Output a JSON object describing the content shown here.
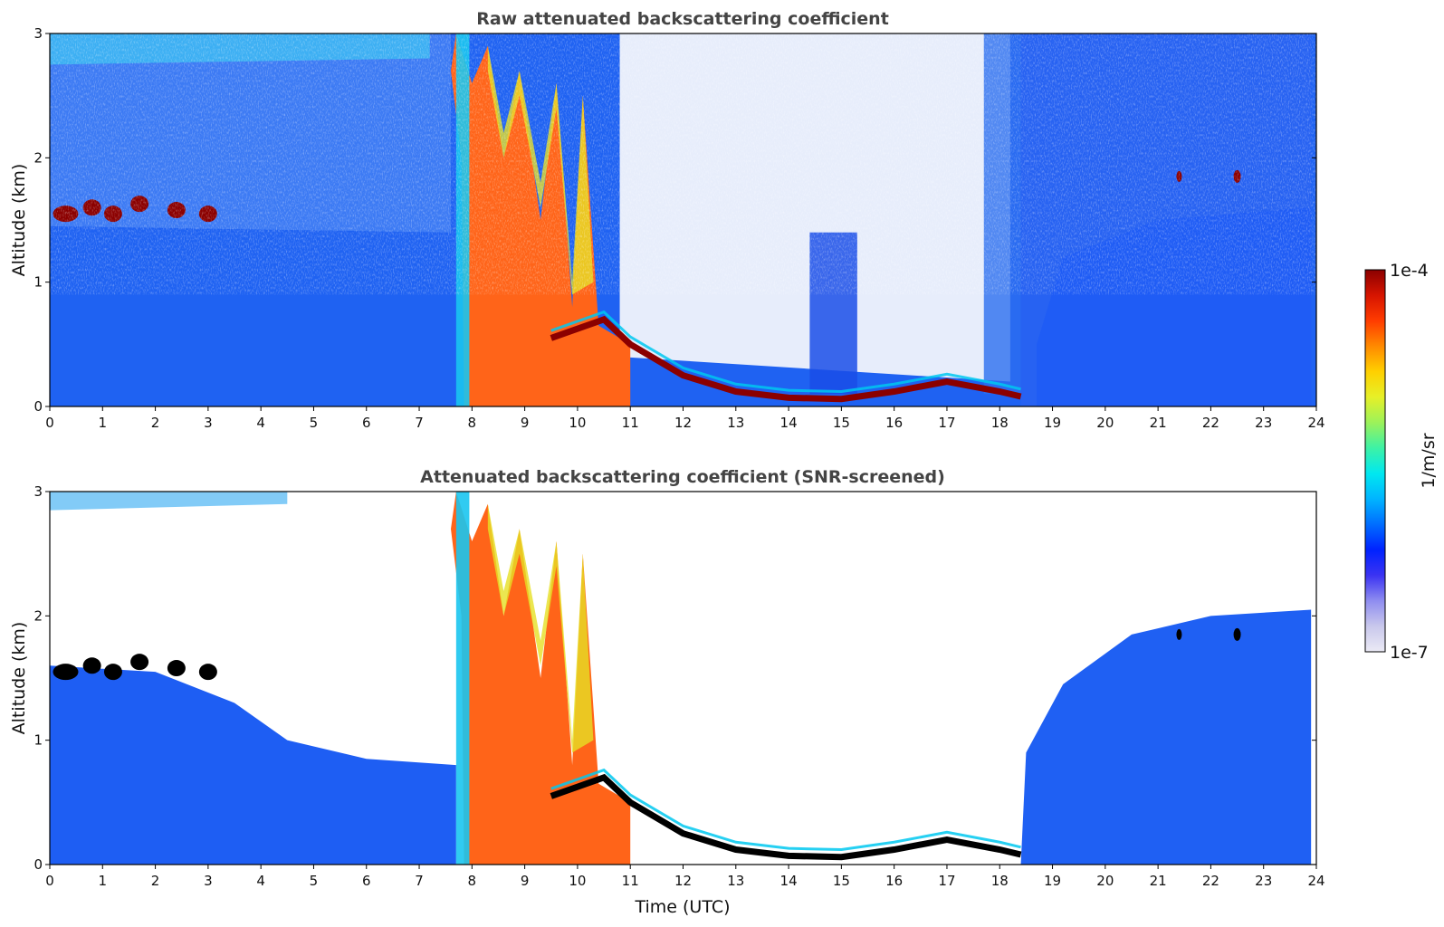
{
  "colors": {
    "colormap": [
      "#ebeaf5",
      "#c9c8ec",
      "#8f8df0",
      "#3b33f2",
      "#0022ff",
      "#006dff",
      "#00b4ff",
      "#00e8f0",
      "#3df2a6",
      "#9cf25a",
      "#e6f028",
      "#ffd000",
      "#ff8a00",
      "#ff3c00",
      "#d61400",
      "#8b0000"
    ],
    "snr_black": "#000000",
    "cloud_mid": "#ff6a1a"
  },
  "colorbar": {
    "label": "1/m/sr",
    "max_label": "1e-4",
    "min_label": "1e-7",
    "scale": "log"
  },
  "chart_data": [
    {
      "type": "heatmap",
      "title": "Raw attenuated backscattering coefficient",
      "xlabel": "",
      "ylabel": "Altitude (km)",
      "xlim": [
        0,
        24
      ],
      "ylim": [
        0,
        3
      ],
      "xticks": [
        0,
        1,
        2,
        3,
        4,
        5,
        6,
        7,
        8,
        9,
        10,
        11,
        12,
        13,
        14,
        15,
        16,
        17,
        18,
        19,
        20,
        21,
        22,
        23,
        24
      ],
      "yticks": [
        0,
        1,
        2,
        3
      ],
      "features": [
        {
          "name": "boundary layer",
          "x": [
            0,
            7.8
          ],
          "y": [
            0,
            1.45
          ]
        },
        {
          "name": "residual layer cloud",
          "x": [
            0.2,
            3.1
          ],
          "y": [
            1.5,
            1.75
          ]
        },
        {
          "name": "thick cloud",
          "x": [
            7.8,
            11.0
          ],
          "y": [
            0,
            3.0
          ]
        },
        {
          "name": "cloud base",
          "x": [
            9.5,
            18.4
          ],
          "y": [
            0.7,
            0.05
          ]
        },
        {
          "name": "boundary layer",
          "x": [
            18.6,
            23.9
          ],
          "y": [
            0,
            1.6
          ]
        }
      ]
    },
    {
      "type": "heatmap",
      "title": "Attenuated backscattering coefficient (SNR-screened)",
      "xlabel": "Time (UTC)",
      "ylabel": "Altitude (km)",
      "xlim": [
        0,
        24
      ],
      "ylim": [
        0,
        3
      ],
      "xticks": [
        0,
        1,
        2,
        3,
        4,
        5,
        6,
        7,
        8,
        9,
        10,
        11,
        12,
        13,
        14,
        15,
        16,
        17,
        18,
        19,
        20,
        21,
        22,
        23,
        24
      ],
      "yticks": [
        0,
        1,
        2,
        3
      ],
      "features": [
        {
          "name": "boundary layer",
          "x": [
            0,
            7.7
          ],
          "y": [
            0,
            1.6
          ]
        },
        {
          "name": "residual layer cloud",
          "x": [
            0.2,
            3.1
          ],
          "y": [
            1.5,
            1.75
          ]
        },
        {
          "name": "thick cloud",
          "x": [
            7.8,
            11.0
          ],
          "y": [
            0,
            3.0
          ]
        },
        {
          "name": "cloud base",
          "x": [
            9.5,
            18.4
          ],
          "y": [
            0.7,
            0.05
          ]
        },
        {
          "name": "boundary layer",
          "x": [
            18.4,
            23.9
          ],
          "y": [
            0,
            2.0
          ]
        }
      ]
    }
  ]
}
